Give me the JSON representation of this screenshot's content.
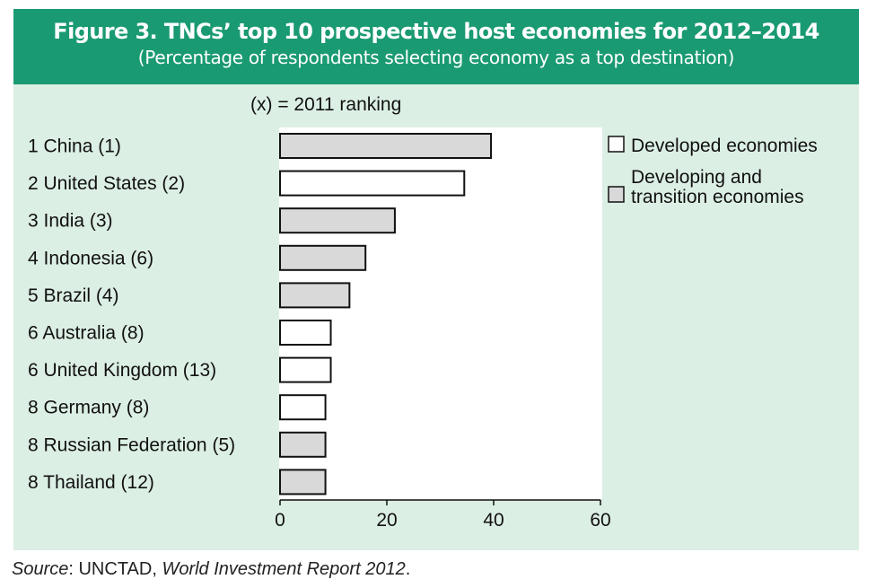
{
  "title": "Figure 3. TNCs’ top 10 prospective host economies for 2012–2014",
  "subtitle": "(Percentage of respondents selecting economy as a top destination)",
  "ranking_note": "(x) = 2011 ranking",
  "source": {
    "prefix": "Source",
    "separator": ": UNCTAD, ",
    "report": "World Investment Report 2012",
    "suffix": "."
  },
  "colors": {
    "header_bg": "#1a9a72",
    "panel_bg": "#dcefe4",
    "developed": "#ffffff",
    "developing": "#d9d9d9"
  },
  "chart_data": {
    "type": "bar",
    "orientation": "horizontal",
    "title": "Figure 3. TNCs’ top 10 prospective host economies for 2012–2014",
    "subtitle": "(Percentage of respondents selecting economy as a top destination)",
    "xlabel": "",
    "ylabel": "",
    "xlim": [
      0,
      60
    ],
    "xticks": [
      0,
      20,
      40,
      60
    ],
    "grid": false,
    "legend_position": "right",
    "legend": [
      {
        "key": "developed",
        "label": "Developed economies"
      },
      {
        "key": "developing",
        "label": "Developing and transition economies"
      }
    ],
    "categories": [
      "1 China (1)",
      "2 United States (2)",
      "3 India (3)",
      "4 Indonesia (6)",
      "5 Brazil (4)",
      "6 Australia (8)",
      "6 United Kingdom (13)",
      "8 Germany (8)",
      "8 Russian Federation (5)",
      "8 Thailand (12)"
    ],
    "values": [
      39.5,
      34.5,
      21.5,
      16,
      13,
      9.5,
      9.5,
      8.5,
      8.5,
      8.5
    ],
    "groups": [
      "developing",
      "developed",
      "developing",
      "developing",
      "developing",
      "developed",
      "developed",
      "developed",
      "developing",
      "developing"
    ]
  }
}
